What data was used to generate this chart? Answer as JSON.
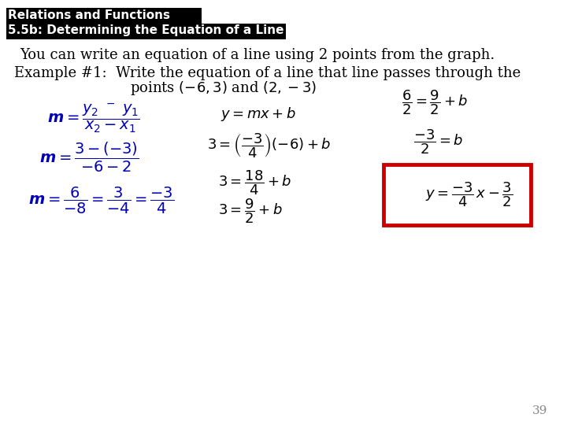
{
  "bg_color": "#ffffff",
  "header_bg": "#000000",
  "header_text_color": "#ffffff",
  "header_line1": "Relations and Functions",
  "header_line2": "5.5b: Determining the Equation of a Line",
  "body_text_color": "#000000",
  "blue_color": "#0000bb",
  "red_box_color": "#cc0000",
  "intro_text": "You can write an equation of a line using 2 points from the graph.",
  "example_line1": "Example #1:  Write the equation of a line that line passes through the",
  "example_line2": "points $(-6, 3)$ and $(2, -3)$",
  "page_number": "39"
}
